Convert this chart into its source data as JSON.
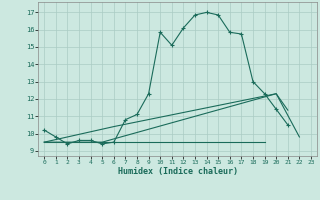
{
  "xlabel": "Humidex (Indice chaleur)",
  "xlim": [
    -0.5,
    23.5
  ],
  "ylim": [
    8.7,
    17.6
  ],
  "yticks": [
    9,
    10,
    11,
    12,
    13,
    14,
    15,
    16,
    17
  ],
  "xticks": [
    0,
    1,
    2,
    3,
    4,
    5,
    6,
    7,
    8,
    9,
    10,
    11,
    12,
    13,
    14,
    15,
    16,
    17,
    18,
    19,
    20,
    21,
    22,
    23
  ],
  "bg_color": "#cce8e0",
  "grid_color": "#aaccC4",
  "line_color": "#1a6b5a",
  "series_main": {
    "x": [
      0,
      1,
      2,
      3,
      4,
      5,
      6,
      7,
      8,
      9,
      10,
      11,
      12,
      13,
      14,
      15,
      16,
      17,
      18,
      19,
      20,
      21
    ],
    "y": [
      10.2,
      9.8,
      9.4,
      9.6,
      9.6,
      9.4,
      9.5,
      10.8,
      11.1,
      12.3,
      15.85,
      15.1,
      16.1,
      16.85,
      17.0,
      16.85,
      15.85,
      15.75,
      13.0,
      12.3,
      11.4,
      10.5
    ]
  },
  "series_flat": {
    "x": [
      0,
      19
    ],
    "y": [
      9.5,
      9.5
    ]
  },
  "series_diag1": {
    "x": [
      0,
      5,
      20,
      22
    ],
    "y": [
      9.5,
      9.5,
      12.3,
      9.8
    ]
  },
  "series_diag2": {
    "x": [
      0,
      6,
      20,
      21
    ],
    "y": [
      9.5,
      10.4,
      12.3,
      11.35
    ]
  }
}
